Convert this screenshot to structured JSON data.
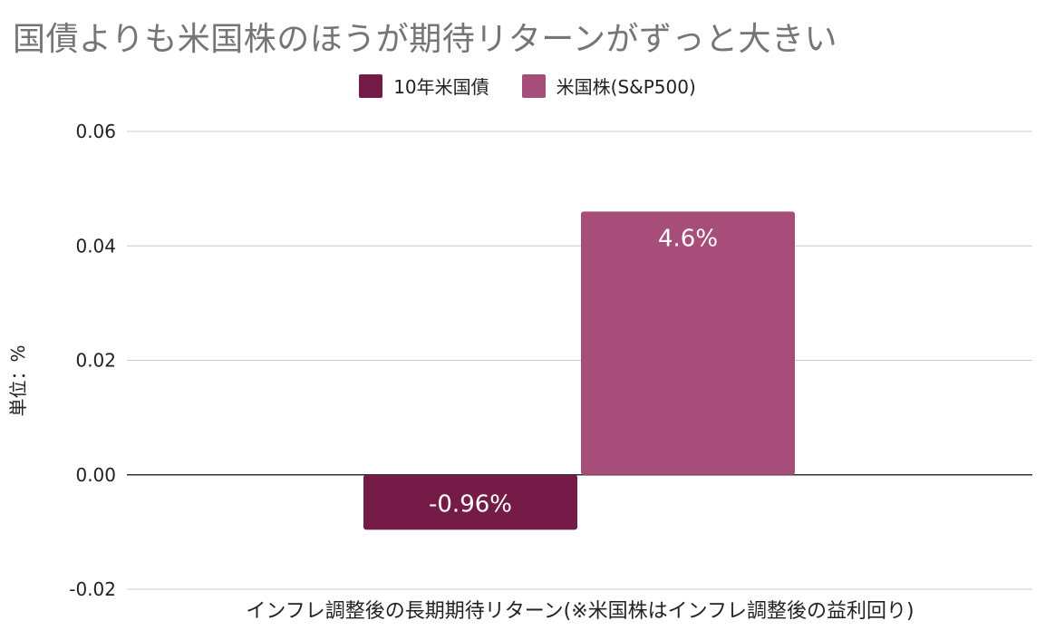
{
  "title": "国債よりも米国株のほうが期待リターンがずっと大きい",
  "chart_data": {
    "type": "bar",
    "categories": [
      "インフレ調整後の長期期待リターン(※米国株はインフレ調整後の益利回り)"
    ],
    "series": [
      {
        "name": "10年米国債",
        "color": "#741b47",
        "values": [
          -0.0096
        ],
        "data_label": "-0.96%"
      },
      {
        "name": "米国株(S&P500)",
        "color": "#a64d79",
        "values": [
          0.046
        ],
        "data_label": "4.6%"
      }
    ],
    "xlabel": "インフレ調整後の長期期待リターン(※米国株はインフレ調整後の益利回り)",
    "ylabel": "単位：%",
    "ylim": [
      -0.02,
      0.06
    ],
    "yticks": [
      "0.06",
      "0.04",
      "0.02",
      "0.00",
      "-0.02"
    ],
    "grid": true,
    "legend_position": "top"
  }
}
